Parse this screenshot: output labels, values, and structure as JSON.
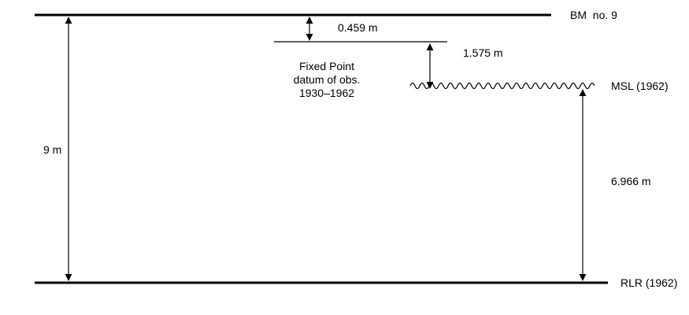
{
  "labels": {
    "benchmark": "BM  no. 9",
    "msl": "MSL (1962)",
    "rlr": "RLR (1962)",
    "fixed_point_line1": "Fixed Point",
    "fixed_point_line2": "datum of obs.",
    "fixed_point_line3": "1930–1962"
  },
  "measurements": {
    "bm_to_fixed_point": "0.459 m",
    "fixed_point_to_msl": "1.575 m",
    "msl_to_rlr": "6.966 m",
    "bm_to_rlr": "9 m"
  },
  "colors": {
    "line": "#000000",
    "background": "#ffffff"
  }
}
